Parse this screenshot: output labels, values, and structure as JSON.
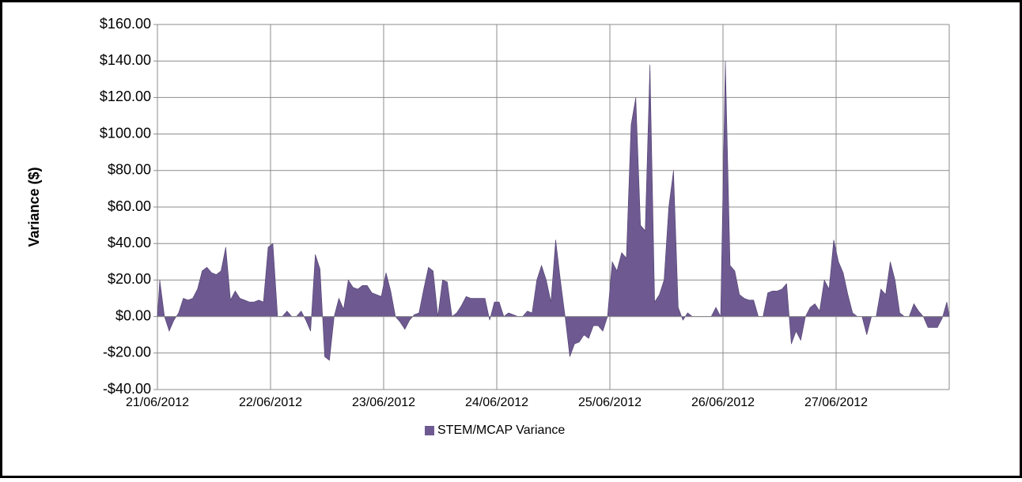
{
  "chart_data": {
    "type": "area",
    "y_axis_label": "Variance ($)",
    "legend": "bottom",
    "grid": true,
    "ylim": [
      -40,
      160
    ],
    "yticks": [
      {
        "value": -40,
        "label": "-$40.00"
      },
      {
        "value": -20,
        "label": "-$20.00"
      },
      {
        "value": 0,
        "label": "$0.00"
      },
      {
        "value": 20,
        "label": "$20.00"
      },
      {
        "value": 40,
        "label": "$40.00"
      },
      {
        "value": 60,
        "label": "$60.00"
      },
      {
        "value": 80,
        "label": "$80.00"
      },
      {
        "value": 100,
        "label": "$100.00"
      },
      {
        "value": 120,
        "label": "$120.00"
      },
      {
        "value": 140,
        "label": "$140.00"
      },
      {
        "value": 160,
        "label": "$160.00"
      }
    ],
    "categories": [
      "21/06/2012",
      null,
      null,
      null,
      null,
      null,
      null,
      null,
      null,
      null,
      null,
      null,
      null,
      null,
      null,
      null,
      null,
      null,
      null,
      null,
      null,
      null,
      null,
      null,
      "22/06/2012",
      null,
      null,
      null,
      null,
      null,
      null,
      null,
      null,
      null,
      null,
      null,
      null,
      null,
      null,
      null,
      null,
      null,
      null,
      null,
      null,
      null,
      null,
      null,
      "23/06/2012",
      null,
      null,
      null,
      null,
      null,
      null,
      null,
      null,
      null,
      null,
      null,
      null,
      null,
      null,
      null,
      null,
      null,
      null,
      null,
      null,
      null,
      null,
      null,
      "24/06/2012",
      null,
      null,
      null,
      null,
      null,
      null,
      null,
      null,
      null,
      null,
      null,
      null,
      null,
      null,
      null,
      null,
      null,
      null,
      null,
      null,
      null,
      null,
      null,
      "25/06/2012",
      null,
      null,
      null,
      null,
      null,
      null,
      null,
      null,
      null,
      null,
      null,
      null,
      null,
      null,
      null,
      null,
      null,
      null,
      null,
      null,
      null,
      null,
      null,
      "26/06/2012",
      null,
      null,
      null,
      null,
      null,
      null,
      null,
      null,
      null,
      null,
      null,
      null,
      null,
      null,
      null,
      null,
      null,
      null,
      null,
      null,
      null,
      null,
      null,
      "27/06/2012",
      null,
      null,
      null,
      null,
      null,
      null,
      null,
      null,
      null,
      null,
      null,
      null,
      null,
      null,
      null,
      null,
      null,
      null,
      null,
      null,
      null,
      null,
      null
    ],
    "series": [
      {
        "name": "STEM/MCAP Variance",
        "color": "#6e5a91",
        "values": [
          20,
          0,
          -8,
          -2,
          2,
          10,
          9,
          10,
          15,
          25,
          27,
          24,
          23,
          25,
          38,
          9,
          14,
          10,
          9,
          8,
          8,
          9,
          8,
          38,
          40,
          0,
          0,
          3,
          0,
          0,
          3,
          -2,
          -8,
          34,
          26,
          -22,
          -24,
          0,
          10,
          4,
          20,
          16,
          15,
          17,
          17,
          13,
          12,
          11,
          24,
          14,
          0,
          -3,
          -7,
          -2,
          1,
          2,
          15,
          27,
          25,
          0,
          20,
          19,
          0,
          2,
          6,
          11,
          10,
          10,
          10,
          10,
          -2,
          8,
          8,
          0,
          2,
          1,
          0,
          0,
          3,
          2,
          20,
          28,
          20,
          8,
          42,
          20,
          0,
          -22,
          -15,
          -14,
          -10,
          -12,
          -5,
          -5,
          -8,
          0,
          30,
          25,
          35,
          32,
          105,
          120,
          50,
          47,
          138,
          8,
          12,
          20,
          60,
          80,
          5,
          -2,
          2,
          0,
          0,
          0,
          0,
          0,
          5,
          0,
          140,
          28,
          25,
          12,
          10,
          9,
          9,
          0,
          0,
          13,
          14,
          14,
          15,
          18,
          -15,
          -8,
          -13,
          0,
          5,
          7,
          3,
          20,
          15,
          42,
          30,
          24,
          12,
          2,
          0,
          0,
          -10,
          0,
          0,
          15,
          12,
          30,
          20,
          2,
          0,
          0,
          7,
          3,
          0,
          -6,
          -6,
          -6,
          -1,
          8
        ]
      }
    ]
  }
}
